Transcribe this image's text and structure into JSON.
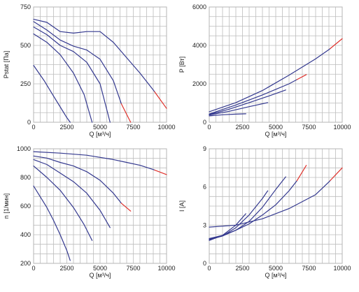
{
  "colors": {
    "curve": "#34398f",
    "red": "#e0312b",
    "grid": "#bdbdbd"
  },
  "chart_data": [
    {
      "type": "line",
      "ylabel": "Pstat [Па]",
      "xlabel": "Q [м³/ч]",
      "xlim": [
        0,
        10000
      ],
      "ylim": [
        0,
        750
      ],
      "xticks": [
        0,
        2500,
        5000,
        7500,
        10000
      ],
      "yticks": [
        0,
        250,
        500,
        750
      ],
      "xtick_labels": [
        "0",
        "2500",
        "5000",
        "7500",
        "10000"
      ],
      "ytick_labels": [
        "0",
        "250",
        "500",
        "750"
      ],
      "grid": true,
      "series": [
        {
          "x": [
            0,
            800,
            1500,
            2000,
            2500,
            2750
          ],
          "y": [
            370,
            270,
            170,
            100,
            30,
            0
          ]
        },
        {
          "x": [
            0,
            1000,
            2000,
            3000,
            3800,
            4400
          ],
          "y": [
            575,
            520,
            440,
            320,
            180,
            0
          ]
        },
        {
          "x": [
            0,
            1000,
            2000,
            3000,
            4000,
            5000,
            5750
          ],
          "y": [
            620,
            570,
            500,
            460,
            390,
            250,
            0
          ]
        },
        {
          "x": [
            0,
            1000,
            2000,
            3000,
            4000,
            5000,
            6000,
            6600,
            7300
          ],
          "y": [
            655,
            600,
            535,
            495,
            470,
            410,
            270,
            120,
            0
          ],
          "red_from": 6600
        },
        {
          "x": [
            0,
            1000,
            2000,
            3000,
            4000,
            5000,
            6000,
            7000,
            8000,
            9000,
            10000
          ],
          "y": [
            670,
            650,
            590,
            580,
            590,
            590,
            520,
            420,
            320,
            210,
            90
          ],
          "red_from": 9100
        }
      ]
    },
    {
      "type": "line",
      "ylabel": "P [Вт]",
      "xlabel": "Q [м³/ч]",
      "xlim": [
        0,
        10000
      ],
      "ylim": [
        0,
        6000
      ],
      "xticks": [
        0,
        2500,
        5000,
        7500,
        10000
      ],
      "yticks": [
        0,
        2000,
        4000,
        6000
      ],
      "xtick_labels": [
        "0",
        "2500",
        "5000",
        "7500",
        "10000"
      ],
      "ytick_labels": [
        "0",
        "2000",
        "4000",
        "6000"
      ],
      "grid": true,
      "series": [
        {
          "x": [
            0,
            1000,
            2000,
            2750
          ],
          "y": [
            330,
            390,
            420,
            440
          ]
        },
        {
          "x": [
            0,
            1500,
            3000,
            4400
          ],
          "y": [
            380,
            570,
            810,
            1020
          ]
        },
        {
          "x": [
            0,
            1500,
            3000,
            4500,
            5750
          ],
          "y": [
            400,
            680,
            1020,
            1370,
            1680
          ]
        },
        {
          "x": [
            0,
            2000,
            4000,
            6000,
            7300
          ],
          "y": [
            430,
            900,
            1420,
            2000,
            2480
          ],
          "red_from": 6600
        },
        {
          "x": [
            0,
            2000,
            4000,
            6000,
            8000,
            9000,
            10000
          ],
          "y": [
            550,
            1020,
            1650,
            2450,
            3300,
            3780,
            4350
          ],
          "red_from": 9100
        }
      ]
    },
    {
      "type": "line",
      "ylabel": "n [1/мин]",
      "xlabel": "Q [м³/ч]",
      "xlim": [
        0,
        10000
      ],
      "ylim": [
        200,
        1000
      ],
      "xticks": [
        0,
        2500,
        5000,
        7500,
        10000
      ],
      "yticks": [
        200,
        400,
        600,
        800,
        1000
      ],
      "xtick_labels": [
        "0",
        "2500",
        "5000",
        "7500",
        "10000"
      ],
      "ytick_labels": [
        "200",
        "400",
        "600",
        "800",
        "1000"
      ],
      "grid": true,
      "series": [
        {
          "x": [
            0,
            1000,
            1500,
            2000,
            2500,
            2750
          ],
          "y": [
            740,
            590,
            500,
            400,
            290,
            220
          ]
        },
        {
          "x": [
            0,
            1000,
            2000,
            3000,
            3800,
            4400
          ],
          "y": [
            880,
            800,
            710,
            590,
            470,
            360
          ]
        },
        {
          "x": [
            0,
            1000,
            2000,
            3000,
            4000,
            5000,
            5750
          ],
          "y": [
            925,
            890,
            830,
            770,
            690,
            570,
            450
          ]
        },
        {
          "x": [
            0,
            1000,
            2000,
            3000,
            4000,
            5000,
            6000,
            6600,
            7300
          ],
          "y": [
            950,
            935,
            905,
            880,
            840,
            780,
            690,
            620,
            565
          ],
          "red_from": 6600
        },
        {
          "x": [
            0,
            2000,
            4000,
            6000,
            7000,
            8000,
            9000,
            10000
          ],
          "y": [
            980,
            970,
            955,
            925,
            905,
            885,
            855,
            820
          ],
          "red_from": 9100
        }
      ]
    },
    {
      "type": "line",
      "ylabel": "I [A]",
      "xlabel": "Q [м³/ч]",
      "xlim": [
        0,
        10000
      ],
      "ylim": [
        0,
        9
      ],
      "xticks": [
        0,
        2500,
        5000,
        7500,
        10000
      ],
      "yticks": [
        0,
        3,
        6,
        9
      ],
      "xtick_labels": [
        "0",
        "2500",
        "5000",
        "7500",
        "10000"
      ],
      "ytick_labels": [
        "0",
        "3",
        "6",
        "9"
      ],
      "grid": true,
      "series": [
        {
          "x": [
            0,
            1000,
            2000,
            2750
          ],
          "y": [
            1.8,
            2.2,
            3.0,
            3.9
          ]
        },
        {
          "x": [
            0,
            1000,
            2000,
            3000,
            4000,
            4400
          ],
          "y": [
            1.85,
            2.15,
            2.8,
            3.8,
            5.1,
            5.7
          ]
        },
        {
          "x": [
            0,
            1000,
            2000,
            3000,
            4000,
            5000,
            5750
          ],
          "y": [
            1.9,
            2.15,
            2.6,
            3.3,
            4.4,
            5.8,
            6.8
          ]
        },
        {
          "x": [
            0,
            1000,
            2000,
            3000,
            4000,
            5000,
            6000,
            6600,
            7300
          ],
          "y": [
            1.95,
            2.2,
            2.6,
            3.1,
            3.8,
            4.6,
            5.7,
            6.5,
            7.7
          ],
          "red_from": 6600
        },
        {
          "x": [
            0,
            2000,
            4000,
            6000,
            8000,
            9000,
            10000
          ],
          "y": [
            2.85,
            3.0,
            3.5,
            4.3,
            5.4,
            6.4,
            7.5
          ],
          "red_from": 9100
        }
      ]
    }
  ]
}
